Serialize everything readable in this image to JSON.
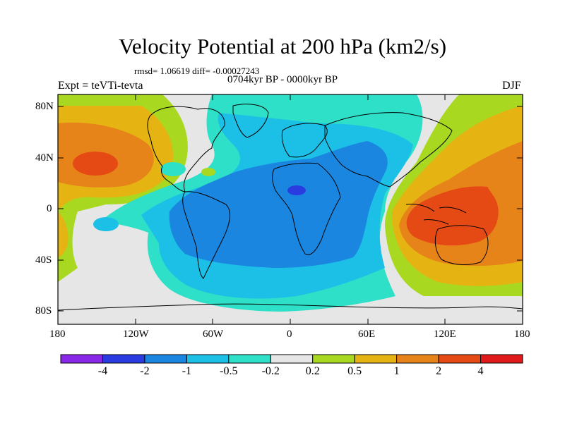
{
  "title": "Velocity Potential at 200 hPa (km2/s)",
  "stats": "rmsd= 1.06619 diff= -0.00027243",
  "period": "0704kyr BP - 0000kyr BP",
  "experiment": "Expt = teVTi-tevta",
  "season": "DJF",
  "lat_labels": [
    "80N",
    "40N",
    "0",
    "40S",
    "80S"
  ],
  "lon_labels": [
    "180",
    "120W",
    "60W",
    "0",
    "60E",
    "120E",
    "180"
  ],
  "colorbar": {
    "labels": [
      "-4",
      "-2",
      "-1",
      "-0.5",
      "-0.2",
      "0.2",
      "0.5",
      "1",
      "2",
      "4"
    ],
    "colors": [
      "#8a28e8",
      "#2a3ce0",
      "#1a86e0",
      "#1cc0e6",
      "#2fe0c8",
      "#e6e6e6",
      "#a8d820",
      "#e6b412",
      "#e6841a",
      "#e64a14",
      "#e01a1a"
    ]
  },
  "map_colors": {
    "background": "#e6e6e6",
    "blue_dark": "#2a3ce0",
    "blue": "#1a86e0",
    "cyan": "#1cc0e6",
    "teal": "#2fe0c8",
    "green": "#a8d820",
    "yellow": "#e6b412",
    "orange": "#e6841a",
    "red_orange": "#e64a14"
  }
}
